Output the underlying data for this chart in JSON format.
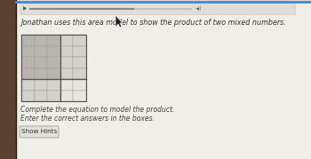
{
  "bg_left_color": "#5a4030",
  "bg_right_color": "#dedad6",
  "panel_color": "#f0eee9",
  "topbar_color": "#e0ddd8",
  "title_text": "Jonathan uses this area model to show the product of two mixed numbers.",
  "line1": "Complete the equation to model the product.",
  "line2": "Enter the correct answers in the boxes.",
  "button_text": "Show Hints",
  "title_fontsize": 5.8,
  "body_fontsize": 5.5,
  "button_fontsize": 5.2,
  "grid_rows": 6,
  "grid_cols": 5,
  "shaded_cols": 3,
  "shaded_rows": 4,
  "shade_color_dark": "#b8b4b0",
  "shade_color_light": "#d4d0cc",
  "grid_empty_color": "#e8e5e1",
  "grid_line_color": "#999999",
  "topbar_border": "#cccccc"
}
